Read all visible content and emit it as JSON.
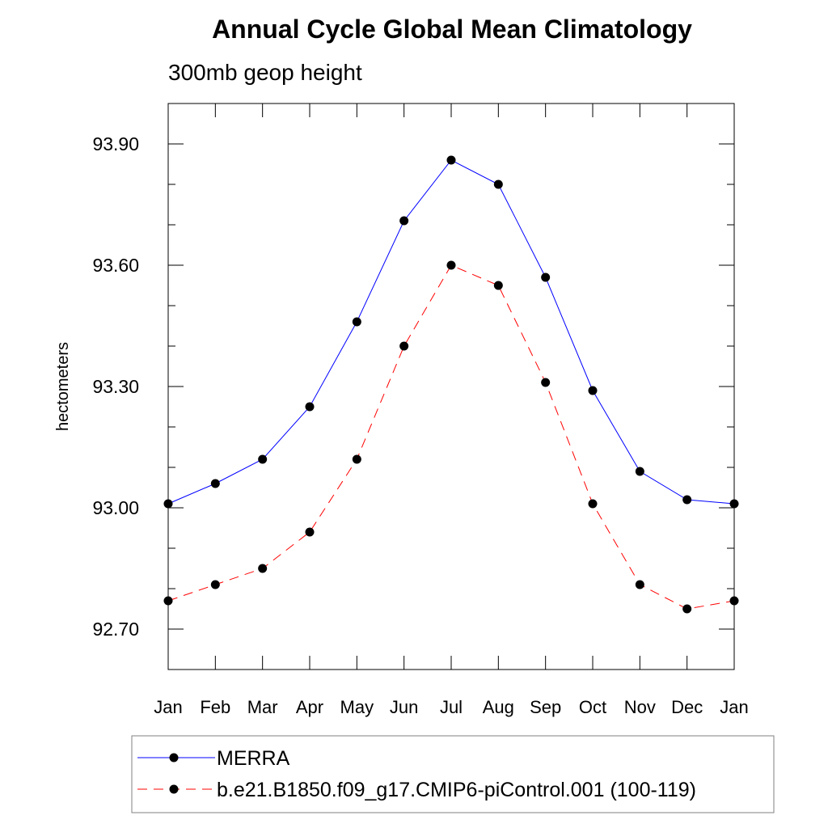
{
  "chart_data": {
    "type": "line",
    "title": "Annual Cycle Global Mean Climatology",
    "subtitle": "300mb geop height",
    "xlabel": "",
    "ylabel": "hectometers",
    "categories": [
      "Jan",
      "Feb",
      "Mar",
      "Apr",
      "May",
      "Jun",
      "Jul",
      "Aug",
      "Sep",
      "Oct",
      "Nov",
      "Dec",
      "Jan"
    ],
    "ylim": [
      92.6,
      94.0
    ],
    "yticks": [
      92.7,
      93.0,
      93.3,
      93.6,
      93.9
    ],
    "ytick_labels": [
      "92.70",
      "93.00",
      "93.30",
      "93.60",
      "93.90"
    ],
    "grid": false,
    "legend_position": "bottom",
    "series": [
      {
        "name": "MERRA",
        "color": "#0000ff",
        "dash": "solid",
        "marker": "filled-circle",
        "values": [
          93.01,
          93.06,
          93.12,
          93.25,
          93.46,
          93.71,
          93.86,
          93.8,
          93.57,
          93.29,
          93.09,
          93.02,
          93.01
        ]
      },
      {
        "name": "b.e21.B1850.f09_g17.CMIP6-piControl.001 (100-119)",
        "color": "#ff0000",
        "dash": "dashed",
        "marker": "filled-circle",
        "values": [
          92.77,
          92.81,
          92.85,
          92.94,
          93.12,
          93.4,
          93.6,
          93.55,
          93.31,
          93.01,
          92.81,
          92.75,
          92.77
        ]
      }
    ]
  }
}
